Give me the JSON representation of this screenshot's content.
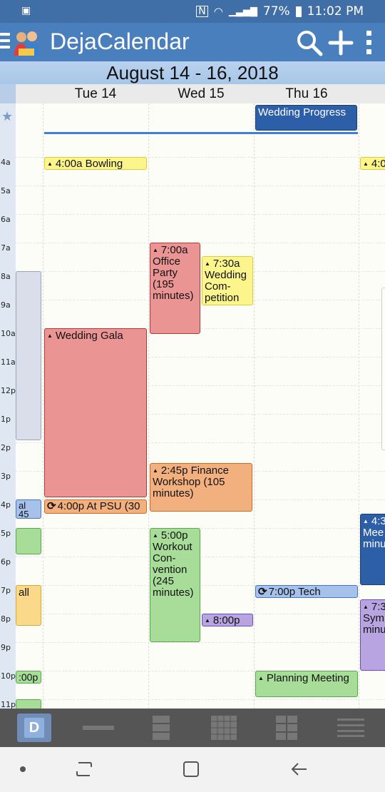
{
  "status_bar": {
    "time": "11:02 PM",
    "battery": "77%"
  },
  "app": {
    "title": "DejaCalendar"
  },
  "date_range": "August 14 - 16, 2018",
  "days": [
    "Tue 14",
    "Wed 15",
    "Thu 16"
  ],
  "hours": [
    "4a",
    "5a",
    "6a",
    "7a",
    "8a",
    "9a",
    "10a",
    "11a",
    "12p",
    "1p",
    "2p",
    "3p",
    "4p",
    "5p",
    "6p",
    "7p",
    "8p",
    "9p",
    "10p",
    "11p"
  ],
  "events": {
    "wedding_progress": "Wedding Progress",
    "bowling": "4:00a Bowling",
    "bowling_next": "4:0",
    "office_party": "7:00a Office Party (195 minutes)",
    "wedding_competition": "7:30a Wedding Com-petition",
    "wedding_gala": "Wedding Gala",
    "at_psu": "4:00p At PSU (30",
    "finance_workshop": "2:45p Finance Workshop (105 minutes)",
    "workout_convention": "5:00p Workout Con-vention (245 minutes)",
    "wed_8pm": "8:00p",
    "tech": "7:00p Tech",
    "planning_meeting": "Planning Meeting",
    "prev_4p": "al 45",
    "prev_7p": "all",
    "prev_10p": ":00p",
    "next_430": "4:3 Mee minu",
    "next_730": "7:3 Sym minu"
  },
  "toolbar": {
    "day_label": "D"
  },
  "colors": {
    "appbar": "#4a7fbd",
    "accent": "#3f7fd8"
  }
}
